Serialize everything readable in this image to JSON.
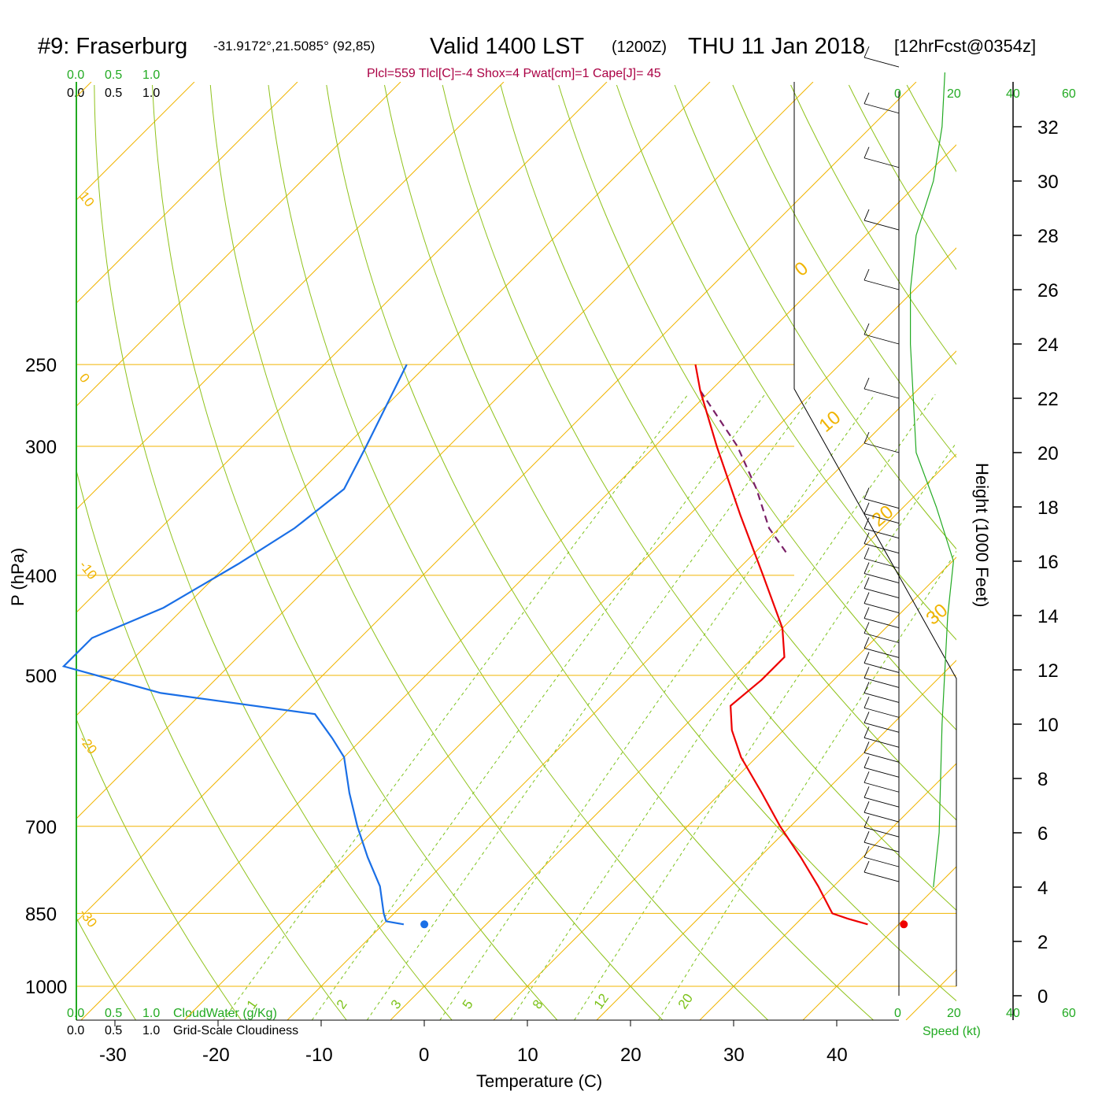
{
  "title": {
    "station": "#9: Fraserburg",
    "coords": "-31.9172°,21.5085° (92,85)",
    "valid": "Valid 1400 LST",
    "utc": "(1200Z)",
    "date": "THU 11 Jan 2018",
    "forecast": "[12hrFcst@0354z]"
  },
  "indices": "Plcl=559 Tlcl[C]=-4 Shox=4 Pwat[cm]=1 Cape[J]= 45",
  "cloud_scale_labels": [
    "0.0",
    "0.5",
    "1.0"
  ],
  "cloud_water_label": "CloudWater (g/Kg)",
  "cloudiness_label": "Grid-Scale Cloudiness",
  "speed_label": "Speed (kt)",
  "speed_ticks": [
    "0",
    "20",
    "40",
    "60"
  ],
  "colors": {
    "temperature": "#ee0000",
    "dewpoint": "#1a6fe6",
    "parcel": "#7a1f66",
    "isobar": "#f0b400",
    "isotherm": "#f0b400",
    "dry_adiabat": "#8fc21a",
    "mixing_ratio": "#7cc21a",
    "scale_green": "#22aa22",
    "indices": "#aa0044"
  },
  "chart_data": {
    "type": "line",
    "subtype": "skew-t log-p sounding",
    "xlabel": "Temperature (C)",
    "ylabel": "P (hPa)",
    "y2label": "Height (1000 Feet)",
    "x_ticks": [
      -30,
      -20,
      -10,
      0,
      10,
      20,
      30,
      40
    ],
    "p_ticks": [
      250,
      300,
      400,
      500,
      700,
      850,
      1000
    ],
    "height_ticks": [
      0,
      2,
      4,
      6,
      8,
      10,
      12,
      14,
      16,
      18,
      20,
      22,
      24,
      26,
      28,
      30,
      32
    ],
    "ylim": [
      1000,
      250
    ],
    "isotherm_labels": [
      "30",
      "20",
      "10",
      "0",
      "-10",
      "-20",
      "-30"
    ],
    "adiabat_labels": [
      "0",
      "10",
      "20",
      "30"
    ],
    "mixing_ratio_labels": [
      "1",
      "2",
      "3",
      "5",
      "8",
      "12",
      "20"
    ],
    "series": [
      {
        "name": "Temperature",
        "points": [
          {
            "p": 250,
            "t": -34
          },
          {
            "p": 265,
            "t": -31
          },
          {
            "p": 300,
            "t": -24
          },
          {
            "p": 350,
            "t": -15
          },
          {
            "p": 400,
            "t": -7
          },
          {
            "p": 450,
            "t": 0
          },
          {
            "p": 480,
            "t": 3
          },
          {
            "p": 505,
            "t": 3
          },
          {
            "p": 535,
            "t": 2.5
          },
          {
            "p": 565,
            "t": 5
          },
          {
            "p": 600,
            "t": 8.5
          },
          {
            "p": 650,
            "t": 14
          },
          {
            "p": 700,
            "t": 19
          },
          {
            "p": 750,
            "t": 24
          },
          {
            "p": 800,
            "t": 28.5
          },
          {
            "p": 850,
            "t": 32.5
          },
          {
            "p": 860,
            "t": 34.5
          },
          {
            "p": 871,
            "t": 37
          }
        ]
      },
      {
        "name": "Dew point",
        "points": [
          {
            "p": 250,
            "t": -62
          },
          {
            "p": 300,
            "t": -58
          },
          {
            "p": 330,
            "t": -56
          },
          {
            "p": 360,
            "t": -57
          },
          {
            "p": 390,
            "t": -59
          },
          {
            "p": 430,
            "t": -62
          },
          {
            "p": 460,
            "t": -66
          },
          {
            "p": 490,
            "t": -66
          },
          {
            "p": 520,
            "t": -54
          },
          {
            "p": 545,
            "t": -37
          },
          {
            "p": 575,
            "t": -33
          },
          {
            "p": 600,
            "t": -30
          },
          {
            "p": 650,
            "t": -26
          },
          {
            "p": 700,
            "t": -22
          },
          {
            "p": 750,
            "t": -18
          },
          {
            "p": 800,
            "t": -14
          },
          {
            "p": 850,
            "t": -11
          },
          {
            "p": 865,
            "t": -10
          },
          {
            "p": 871,
            "t": -8
          }
        ]
      },
      {
        "name": "Parcel",
        "points": [
          {
            "p": 265,
            "t": -31
          },
          {
            "p": 300,
            "t": -22
          },
          {
            "p": 330,
            "t": -16
          },
          {
            "p": 360,
            "t": -11
          },
          {
            "p": 380,
            "t": -7
          }
        ]
      }
    ],
    "surface_points": [
      {
        "name": "dew point marker",
        "p": 871,
        "t": -6
      },
      {
        "name": "temperature marker",
        "p": 871,
        "t": 40.5
      }
    ],
    "wind_profile_kt": [
      {
        "h_kft": 4,
        "speed": 12
      },
      {
        "h_kft": 6,
        "speed": 14
      },
      {
        "h_kft": 10,
        "speed": 15
      },
      {
        "h_kft": 14,
        "speed": 17
      },
      {
        "h_kft": 16,
        "speed": 19
      },
      {
        "h_kft": 18,
        "speed": 13
      },
      {
        "h_kft": 20,
        "speed": 6
      },
      {
        "h_kft": 24,
        "speed": 4
      },
      {
        "h_kft": 26,
        "speed": 4
      },
      {
        "h_kft": 28,
        "speed": 6
      },
      {
        "h_kft": 30,
        "speed": 12
      },
      {
        "h_kft": 32,
        "speed": 15
      },
      {
        "h_kft": 34,
        "speed": 16
      }
    ]
  }
}
